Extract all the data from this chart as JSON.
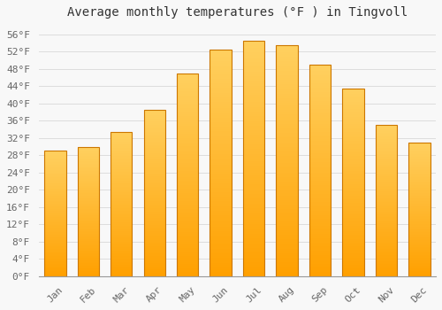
{
  "title": "Average monthly temperatures (°F ) in Tingvoll",
  "months": [
    "Jan",
    "Feb",
    "Mar",
    "Apr",
    "May",
    "Jun",
    "Jul",
    "Aug",
    "Sep",
    "Oct",
    "Nov",
    "Dec"
  ],
  "values": [
    29.0,
    30.0,
    33.5,
    38.5,
    47.0,
    52.5,
    54.5,
    53.5,
    49.0,
    43.5,
    35.0,
    31.0
  ],
  "bar_color_top": "#FFD060",
  "bar_color_bottom": "#FFA000",
  "bar_edge_color": "#CC7700",
  "background_color": "#F8F8F8",
  "grid_color": "#DDDDDD",
  "ylim": [
    0,
    58
  ],
  "ytick_step": 4,
  "title_fontsize": 10,
  "tick_fontsize": 8,
  "title_color": "#333333",
  "tick_color": "#666666"
}
